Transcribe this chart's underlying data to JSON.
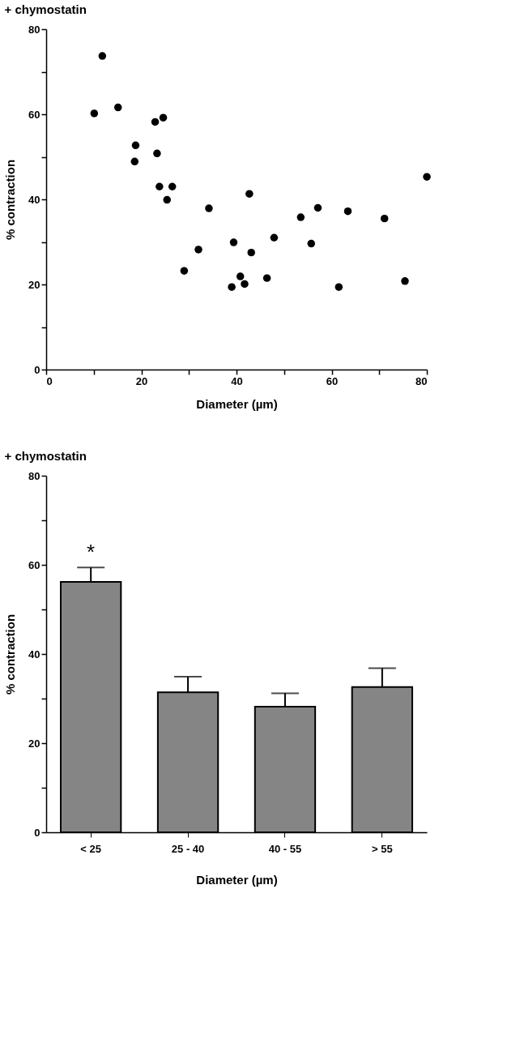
{
  "chart_data": [
    {
      "type": "scatter",
      "title": "+ chymostatin",
      "xlabel": "Diameter (µm)",
      "ylabel": "% contraction",
      "x": [
        10.1,
        11.8,
        15.1,
        18.6,
        18.8,
        22.9,
        24.6,
        23.3,
        23.8,
        26.5,
        25.4,
        34.2,
        32.0,
        29.0,
        39.0,
        39.4,
        40.8,
        41.7,
        42.7,
        43.1,
        46.4,
        47.9,
        53.5,
        55.7,
        57.1,
        61.5,
        63.4,
        71.1,
        75.4,
        80.0
      ],
      "values": [
        60.2,
        73.7,
        61.6,
        48.9,
        52.7,
        58.2,
        59.2,
        50.8,
        43.0,
        43.0,
        39.9,
        37.9,
        28.2,
        23.2,
        19.4,
        29.9,
        21.9,
        20.1,
        41.3,
        27.5,
        21.5,
        31.0,
        35.8,
        29.6,
        38.0,
        19.4,
        37.2,
        35.5,
        20.8,
        45.3
      ],
      "color": "#000000",
      "marker": "circle",
      "xlim": [
        0,
        80
      ],
      "xticks": [
        0,
        {
          "value": 10,
          "label": null
        },
        20,
        {
          "value": 30,
          "label": null
        },
        40,
        {
          "value": 50,
          "label": null
        },
        60,
        {
          "value": 70,
          "label": null
        },
        80
      ],
      "ylim": [
        0,
        80
      ],
      "yticks": [
        0,
        {
          "value": 10,
          "label": null
        },
        20,
        {
          "value": 30,
          "label": null
        },
        40,
        {
          "value": 50,
          "label": null
        },
        60,
        {
          "value": 70,
          "label": null
        },
        80
      ],
      "grid": false,
      "legend": false
    },
    {
      "type": "bar",
      "title": "+ chymostatin",
      "xlabel": "Diameter (µm)",
      "ylabel": "% contraction",
      "categories": [
        "< 25",
        "25 - 40",
        "40 - 55",
        "> 55"
      ],
      "values": [
        56.2,
        31.4,
        28.2,
        32.6
      ],
      "errors": [
        [
          56.2,
          59.4
        ],
        [
          31.4,
          34.9
        ],
        [
          28.2,
          31.2
        ],
        [
          32.6,
          36.8
        ]
      ],
      "color": "#858585",
      "ylim": [
        0,
        80
      ],
      "yticks": [
        0,
        {
          "value": 10,
          "label": null
        },
        20,
        {
          "value": 30,
          "label": null
        },
        40,
        {
          "value": 50,
          "label": null
        },
        60,
        {
          "value": 70,
          "label": null
        },
        80
      ],
      "annotations": [
        {
          "text": "*",
          "x": "< 25",
          "y": 59.4
        }
      ],
      "grid": false,
      "legend": false
    }
  ]
}
